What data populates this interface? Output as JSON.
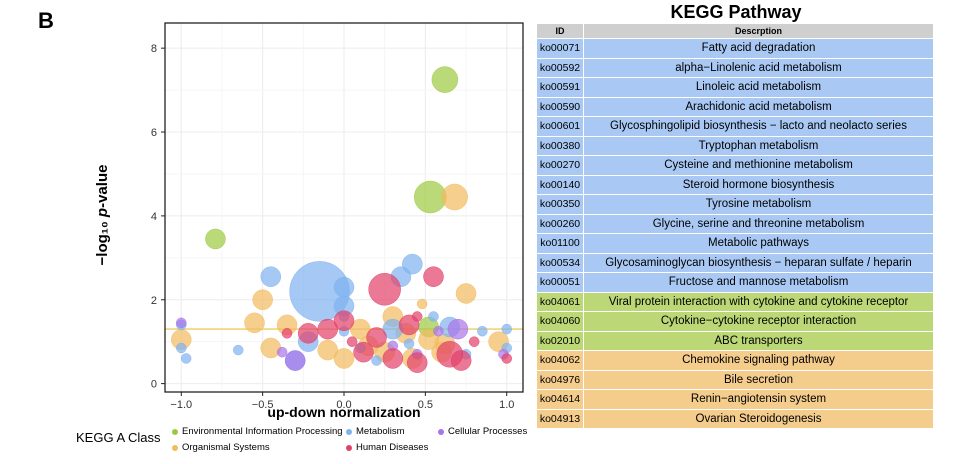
{
  "panel_label": "B",
  "legend": {
    "title": "KEGG A Class",
    "items": [
      {
        "label": "Environmental Information Processing",
        "color": "#9dc93e"
      },
      {
        "label": "Metabolism",
        "color": "#7fb2f0"
      },
      {
        "label": "Cellular Processes",
        "color": "#a974e8"
      },
      {
        "label": "Organismal Systems",
        "color": "#f2bb5f"
      },
      {
        "label": "Human Diseases",
        "color": "#e2406a"
      }
    ]
  },
  "chart_data": {
    "type": "scatter",
    "xlabel": "up-down normalization",
    "ylabel_prefix": "−log₁₀ ",
    "ylabel_p": "p",
    "ylabel_suffix": "-value",
    "xlim": [
      -1.1,
      1.1
    ],
    "ylim": [
      -0.2,
      8.6
    ],
    "x_ticks": [
      -1.0,
      -0.5,
      0.0,
      0.5,
      1.0
    ],
    "x_tick_labels": [
      "−1.0",
      "−0.5",
      "0.0",
      "0.5",
      "1.0"
    ],
    "y_ticks": [
      0,
      2,
      4,
      6,
      8
    ],
    "y_tick_labels": [
      "0",
      "2",
      "4",
      "6",
      "8"
    ],
    "threshold": 1.3,
    "threshold_color": "#f0d37a",
    "grid": true,
    "size_scale": "bubble size ~ gene count",
    "series": [
      {
        "category": "Environmental Information Processing",
        "color": "#9dc93e",
        "points": [
          [
            0.62,
            7.25,
            3
          ],
          [
            0.53,
            4.45,
            4
          ],
          [
            -0.79,
            3.45,
            2
          ],
          [
            0.52,
            1.35,
            2
          ]
        ]
      },
      {
        "category": "Organismal Systems",
        "color": "#f2bb5f",
        "points": [
          [
            0.68,
            4.45,
            3
          ],
          [
            0.75,
            2.15,
            2
          ],
          [
            -0.5,
            2.0,
            2
          ],
          [
            -0.55,
            1.45,
            2
          ],
          [
            -0.35,
            1.4,
            2
          ],
          [
            0.3,
            1.6,
            2
          ],
          [
            0.38,
            1.2,
            2
          ],
          [
            0.52,
            1.05,
            2
          ],
          [
            0.62,
            0.95,
            2
          ],
          [
            -0.45,
            0.85,
            2
          ],
          [
            -0.1,
            0.8,
            2
          ],
          [
            0.0,
            0.6,
            2
          ],
          [
            0.15,
            0.9,
            2
          ],
          [
            0.25,
            0.75,
            2
          ],
          [
            0.42,
            0.6,
            2
          ],
          [
            0.6,
            0.75,
            2
          ],
          [
            0.95,
            1.0,
            2
          ],
          [
            -1.0,
            1.05,
            2
          ],
          [
            0.48,
            1.9,
            1
          ],
          [
            0.1,
            1.3,
            2
          ]
        ]
      },
      {
        "category": "Metabolism",
        "color": "#7fb2f0",
        "points": [
          [
            -0.15,
            2.2,
            6
          ],
          [
            0.42,
            2.85,
            2
          ],
          [
            -0.45,
            2.55,
            2
          ],
          [
            0.35,
            2.55,
            2
          ],
          [
            0.0,
            2.3,
            2
          ],
          [
            0.0,
            1.85,
            2
          ],
          [
            0.0,
            1.6,
            1
          ],
          [
            0.0,
            1.25,
            1
          ],
          [
            -0.22,
            1.0,
            2
          ],
          [
            0.3,
            1.3,
            2
          ],
          [
            0.55,
            1.6,
            1
          ],
          [
            0.65,
            1.35,
            2
          ],
          [
            -0.65,
            0.8,
            1
          ],
          [
            -0.3,
            0.55,
            2
          ],
          [
            0.4,
            0.95,
            1
          ],
          [
            0.85,
            1.25,
            1
          ],
          [
            1.0,
            1.3,
            1
          ],
          [
            -1.0,
            1.4,
            1
          ],
          [
            -1.0,
            0.85,
            1
          ],
          [
            -0.97,
            0.6,
            1
          ],
          [
            0.2,
            0.55,
            1
          ],
          [
            0.75,
            0.7,
            1
          ],
          [
            1.0,
            0.85,
            1
          ],
          [
            0.1,
            0.85,
            1
          ]
        ]
      },
      {
        "category": "Cellular Processes",
        "color": "#a974e8",
        "points": [
          [
            -0.3,
            0.55,
            2
          ],
          [
            -0.38,
            0.75,
            1
          ],
          [
            0.7,
            1.3,
            2
          ],
          [
            0.58,
            1.25,
            1
          ],
          [
            0.45,
            0.7,
            1
          ],
          [
            -1.0,
            1.45,
            1
          ],
          [
            0.98,
            0.7,
            1
          ],
          [
            0.3,
            0.9,
            1
          ]
        ]
      },
      {
        "category": "Human Diseases",
        "color": "#e2406a",
        "points": [
          [
            0.25,
            2.25,
            4
          ],
          [
            0.55,
            2.55,
            2
          ],
          [
            0.45,
            1.6,
            1
          ],
          [
            -0.1,
            1.3,
            2
          ],
          [
            0.0,
            1.5,
            2
          ],
          [
            0.2,
            1.1,
            2
          ],
          [
            0.4,
            1.4,
            2
          ],
          [
            0.65,
            0.7,
            3
          ],
          [
            0.72,
            0.55,
            2
          ],
          [
            0.3,
            0.6,
            2
          ],
          [
            -0.22,
            1.2,
            2
          ],
          [
            -0.35,
            1.2,
            1
          ],
          [
            0.12,
            0.75,
            2
          ],
          [
            0.45,
            0.5,
            2
          ],
          [
            1.0,
            0.6,
            1
          ],
          [
            0.8,
            1.0,
            1
          ],
          [
            0.05,
            1.0,
            1
          ]
        ]
      }
    ]
  },
  "kegg": {
    "title": "KEGG Pathway",
    "header": {
      "id": "ID",
      "desc": "Descrption"
    },
    "rows": [
      {
        "id": "ko00071",
        "desc": "Fatty acid degradation",
        "cls": "Metabolism"
      },
      {
        "id": "ko00592",
        "desc": "alpha−Linolenic acid metabolism",
        "cls": "Metabolism"
      },
      {
        "id": "ko00591",
        "desc": "Linoleic acid metabolism",
        "cls": "Metabolism"
      },
      {
        "id": "ko00590",
        "desc": "Arachidonic acid metabolism",
        "cls": "Metabolism"
      },
      {
        "id": "ko00601",
        "desc": "Glycosphingolipid biosynthesis − lacto and neolacto series",
        "cls": "Metabolism"
      },
      {
        "id": "ko00380",
        "desc": "Tryptophan metabolism",
        "cls": "Metabolism"
      },
      {
        "id": "ko00270",
        "desc": "Cysteine and methionine metabolism",
        "cls": "Metabolism"
      },
      {
        "id": "ko00140",
        "desc": "Steroid hormone biosynthesis",
        "cls": "Metabolism"
      },
      {
        "id": "ko00350",
        "desc": "Tyrosine metabolism",
        "cls": "Metabolism"
      },
      {
        "id": "ko00260",
        "desc": "Glycine, serine and threonine metabolism",
        "cls": "Metabolism"
      },
      {
        "id": "ko01100",
        "desc": "Metabolic pathways",
        "cls": "Metabolism"
      },
      {
        "id": "ko00534",
        "desc": "Glycosaminoglycan biosynthesis − heparan sulfate / heparin",
        "cls": "Metabolism"
      },
      {
        "id": "ko00051",
        "desc": "Fructose and mannose metabolism",
        "cls": "Metabolism"
      },
      {
        "id": "ko04061",
        "desc": "Viral protein interaction with cytokine and cytokine receptor",
        "cls": "Environmental Information Processing"
      },
      {
        "id": "ko04060",
        "desc": "Cytokine−cytokine receptor interaction",
        "cls": "Environmental Information Processing"
      },
      {
        "id": "ko02010",
        "desc": "ABC transporters",
        "cls": "Environmental Information Processing"
      },
      {
        "id": "ko04062",
        "desc": "Chemokine signaling pathway",
        "cls": "Organismal Systems"
      },
      {
        "id": "ko04976",
        "desc": "Bile secretion",
        "cls": "Organismal Systems"
      },
      {
        "id": "ko04614",
        "desc": "Renin−angiotensin system",
        "cls": "Organismal Systems"
      },
      {
        "id": "ko04913",
        "desc": "Ovarian Steroidogenesis",
        "cls": "Organismal Systems"
      }
    ],
    "row_colors": {
      "Metabolism": "#a9c9f4",
      "Environmental Information Processing": "#bcd876",
      "Organismal Systems": "#f4cc8c"
    }
  }
}
